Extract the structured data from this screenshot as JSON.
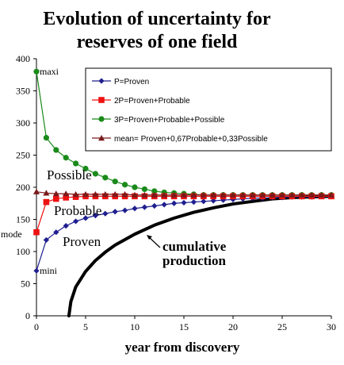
{
  "chart_data": {
    "type": "line",
    "title": [
      "Evolution of uncertainty for",
      "reserves of one field"
    ],
    "xlabel": "year from discovery",
    "ylabel": "",
    "xlim": [
      0,
      30
    ],
    "ylim": [
      0,
      400
    ],
    "x_ticks": [
      "0",
      "5",
      "10",
      "15",
      "20",
      "25",
      "30"
    ],
    "y_ticks": [
      "0",
      "50",
      "100",
      "150",
      "200",
      "250",
      "300",
      "350",
      "400"
    ],
    "grid": false,
    "legend_position": "top-right",
    "colors": {
      "proven": "#1f1f8f",
      "proven_probable": "#ee1111",
      "proven_probable_possible": "#1a8a1a",
      "mean": "#7a1a1a",
      "cumulative": "#000000"
    },
    "series": [
      {
        "name": "P=Proven",
        "marker": "diamond",
        "x": [
          0,
          1,
          2,
          3,
          4,
          5,
          6,
          7,
          8,
          9,
          10,
          11,
          12,
          13,
          14,
          15,
          16,
          17,
          18,
          19,
          20,
          21,
          22,
          23,
          24,
          25,
          26,
          27,
          28,
          29,
          30
        ],
        "values": [
          70,
          118,
          130,
          140,
          147,
          152,
          156,
          159,
          162,
          164,
          167,
          169,
          171,
          173,
          175,
          176,
          177,
          178,
          179,
          180,
          181,
          182,
          183,
          183,
          184,
          184,
          185,
          185,
          185,
          186,
          186
        ]
      },
      {
        "name": "2P=Proven+Probable",
        "marker": "square",
        "x": [
          0,
          1,
          2,
          3,
          4,
          5,
          6,
          7,
          8,
          9,
          10,
          11,
          12,
          13,
          14,
          15,
          16,
          17,
          18,
          19,
          20,
          21,
          22,
          23,
          24,
          25,
          26,
          27,
          28,
          29,
          30
        ],
        "values": [
          130,
          177,
          182,
          184,
          185,
          186,
          186,
          186,
          186,
          186,
          186,
          186,
          186,
          186,
          186,
          186,
          186,
          186,
          186,
          186,
          186,
          186,
          186,
          186,
          186,
          186,
          186,
          186,
          186,
          186,
          186
        ]
      },
      {
        "name": "3P=Proven+Probable+Possible",
        "marker": "circle",
        "x": [
          0,
          1,
          2,
          3,
          4,
          5,
          6,
          7,
          8,
          9,
          10,
          11,
          12,
          13,
          14,
          15,
          16,
          17,
          18,
          19,
          20,
          21,
          22,
          23,
          24,
          25,
          26,
          27,
          28,
          29,
          30
        ],
        "values": [
          380,
          277,
          258,
          246,
          237,
          229,
          221,
          215,
          209,
          204,
          200,
          197,
          194,
          192,
          191,
          190,
          189,
          188,
          188,
          188,
          188,
          188,
          188,
          188,
          188,
          188,
          188,
          188,
          188,
          188,
          188
        ]
      },
      {
        "name": "mean= Proven+0,67Probable+0,33Possible",
        "marker": "triangle",
        "x": [
          0,
          1,
          2,
          3,
          4,
          5,
          6,
          7,
          8,
          9,
          10,
          11,
          12,
          13,
          14,
          15,
          16,
          17,
          18,
          19,
          20,
          21,
          22,
          23,
          24,
          25,
          26,
          27,
          28,
          29,
          30
        ],
        "values": [
          193,
          191,
          190,
          190,
          189,
          189,
          189,
          189,
          189,
          189,
          188,
          188,
          188,
          188,
          188,
          188,
          188,
          188,
          188,
          188,
          188,
          188,
          188,
          188,
          188,
          188,
          188,
          188,
          188,
          188,
          188
        ]
      },
      {
        "name": "cumulative production",
        "marker": "none",
        "x": [
          3.3,
          3.5,
          4,
          5,
          6,
          7,
          8,
          10,
          12,
          14,
          16,
          18,
          20,
          22,
          24,
          26,
          28,
          30
        ],
        "values": [
          0,
          22,
          45,
          69,
          86,
          99,
          110,
          127,
          141,
          152,
          161,
          168,
          174,
          178,
          182,
          184,
          185,
          186
        ]
      }
    ],
    "annotations": {
      "maxi": "maxi",
      "mode": "mode",
      "mini": "mini",
      "possible": "Possible",
      "probable": "Probable",
      "proven": "Proven",
      "cumulative_line1": "cumulative",
      "cumulative_line2": "production"
    }
  }
}
